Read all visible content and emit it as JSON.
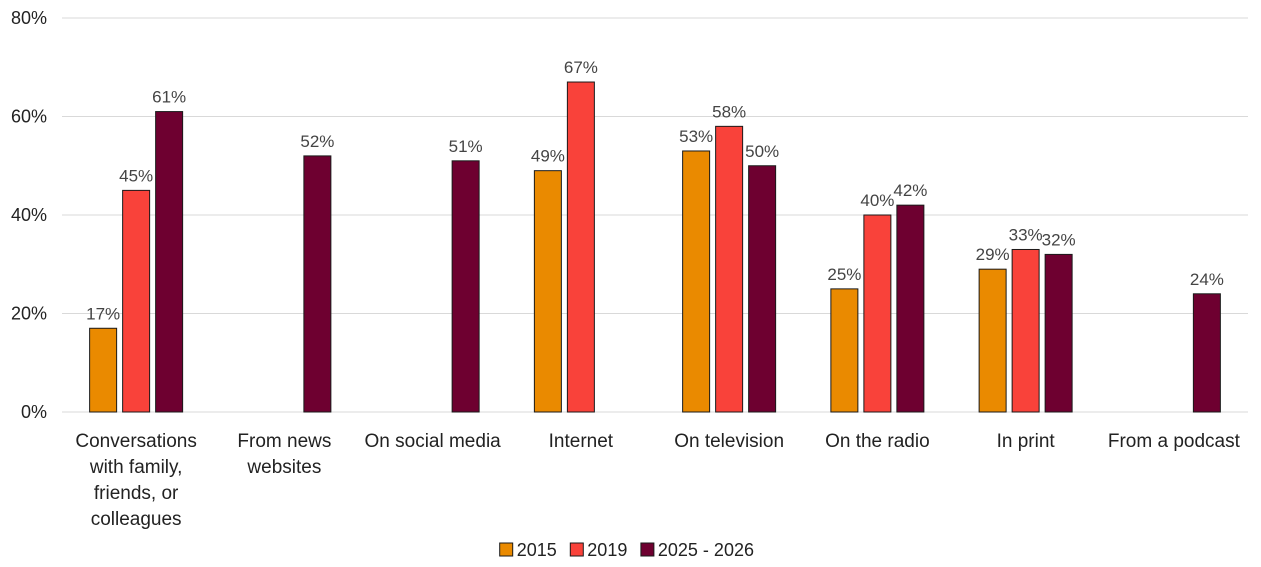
{
  "chart_data": {
    "type": "bar",
    "title": "",
    "xlabel": "",
    "ylabel": "",
    "ylim": [
      0,
      80
    ],
    "yticks": [
      0,
      20,
      40,
      60,
      80
    ],
    "ytick_labels": [
      "0%",
      "20%",
      "40%",
      "60%",
      "80%"
    ],
    "grid": true,
    "legend_position": "bottom",
    "categories": [
      [
        "Conversations",
        "with family,",
        "friends, or",
        "colleagues"
      ],
      [
        "From news",
        "websites"
      ],
      [
        "On social media"
      ],
      [
        "Internet"
      ],
      [
        "On television"
      ],
      [
        "On the radio"
      ],
      [
        "In print"
      ],
      [
        "From a podcast"
      ]
    ],
    "series": [
      {
        "name": "2015",
        "color": "#ea8a00",
        "values": [
          17,
          null,
          null,
          49,
          53,
          25,
          29,
          null
        ],
        "labels": [
          "17%",
          null,
          null,
          "49%",
          "53%",
          "25%",
          "29%",
          null
        ]
      },
      {
        "name": "2019",
        "color": "#f9423a",
        "values": [
          45,
          null,
          null,
          67,
          58,
          40,
          33,
          null
        ],
        "labels": [
          "45%",
          null,
          null,
          "67%",
          "58%",
          "40%",
          "33%",
          null
        ]
      },
      {
        "name": "2025 - 2026",
        "color": "#6e0030",
        "values": [
          61,
          52,
          51,
          null,
          50,
          42,
          32,
          24
        ],
        "labels": [
          "61%",
          "52%",
          "51%",
          null,
          "50%",
          "42%",
          "32%",
          "24%"
        ]
      }
    ]
  }
}
